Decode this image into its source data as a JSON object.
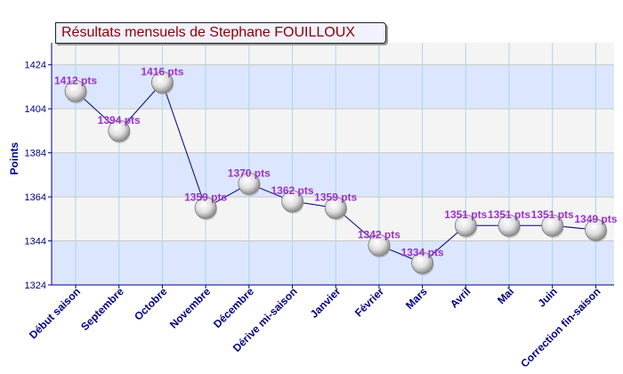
{
  "chart_data": {
    "type": "line",
    "title": "Résultats mensuels de Stephane FOUILLOUX",
    "ylabel": "Points",
    "xlabel": "",
    "ylim": [
      1324,
      1434
    ],
    "yticks": [
      1324,
      1344,
      1364,
      1384,
      1404,
      1424
    ],
    "categories": [
      "Début saison",
      "Septembre",
      "Octobre",
      "Novembre",
      "Décembre",
      "Dérive mi-saison",
      "Janvier",
      "Février",
      "Mars",
      "Avril",
      "Mai",
      "Juin",
      "Correction fin-saison"
    ],
    "values": [
      1412,
      1394,
      1416,
      1359,
      1370,
      1362,
      1359,
      1342,
      1334,
      1351,
      1351,
      1351,
      1349
    ],
    "data_labels": [
      "1412 pts",
      "1394 pts",
      "1416 pts",
      "1359 pts",
      "1370 pts",
      "1362 pts",
      "1359 pts",
      "1342 pts",
      "1334 pts",
      "1351 pts",
      "1351 pts",
      "1351 pts",
      "1349 pts"
    ],
    "grid": true,
    "colors": {
      "line": "#000080",
      "label": "#9932cc",
      "tick": "#000080",
      "band_light": "#f4f4f4",
      "band_blue": "#dce6ff",
      "vgrid": "#a8d8e8"
    }
  }
}
